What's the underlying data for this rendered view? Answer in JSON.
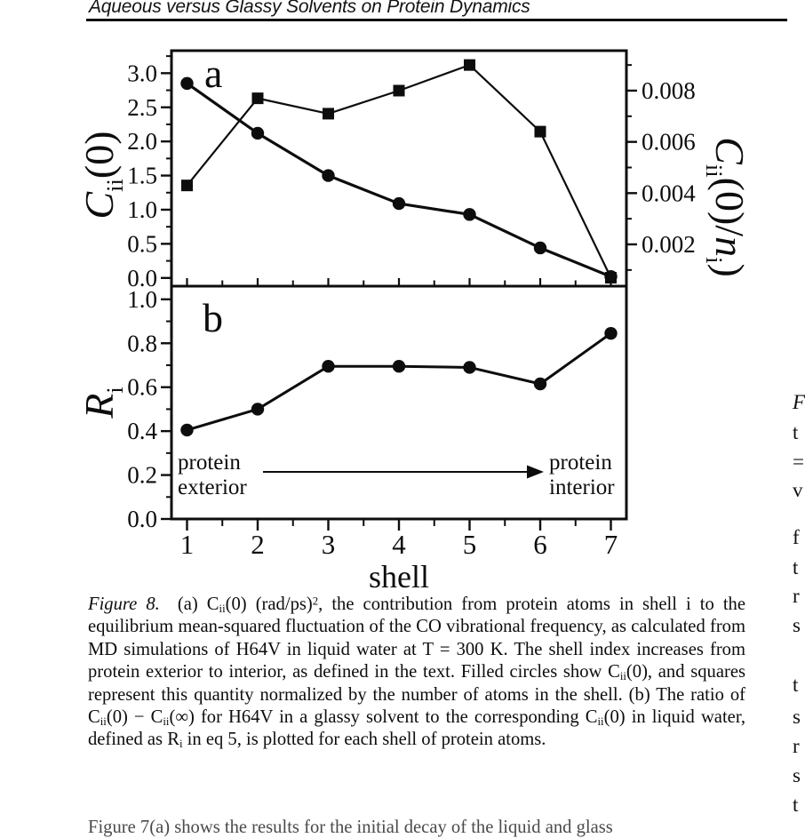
{
  "page": {
    "running_head": "Aqueous versus Glassy Solvents on Protein Dynamics",
    "right_edge_fragments": [
      {
        "y": 444,
        "ch": "F",
        "italic": true
      },
      {
        "y": 478,
        "ch": "t",
        "italic": false
      },
      {
        "y": 511,
        "ch": "=",
        "italic": false
      },
      {
        "y": 543,
        "ch": "v",
        "italic": false
      },
      {
        "y": 596,
        "ch": "f",
        "italic": false
      },
      {
        "y": 630,
        "ch": "t",
        "italic": false
      },
      {
        "y": 662,
        "ch": "r",
        "italic": false
      },
      {
        "y": 695,
        "ch": "s",
        "italic": false
      },
      {
        "y": 762,
        "ch": "t",
        "italic": false
      },
      {
        "y": 798,
        "ch": "s",
        "italic": false
      },
      {
        "y": 831,
        "ch": "r",
        "italic": false
      },
      {
        "y": 864,
        "ch": "s",
        "italic": false
      },
      {
        "y": 897,
        "ch": "t",
        "italic": false
      }
    ],
    "bottom_partial_line": "Figure 7(a) shows the results for the initial decay of the liquid and glass"
  },
  "figure": {
    "caption_lead": "Figure 8.",
    "caption_body": "(a) C~ii~(0) (rad/ps)^2^, the contribution from protein atoms in shell i to the equilibrium mean-squared fluctuation of the CO vibrational frequency, as calculated from MD simulations of H64V in liquid water at T = 300 K. The shell index increases from protein exterior to interior, as defined in the text. Filled circles show C~ii~(0), and squares represent this quantity normalized by the number of atoms in the shell. (b) The ratio of C~ii~(0) − C~ii~(∞) for H64V in a glassy solvent to the corresponding C~ii~(0) in liquid water, defined as R~i~ in eq 5, is plotted for each shell of protein atoms."
  },
  "chart_data": [
    {
      "type": "line",
      "panel_label": "a",
      "x": [
        1,
        2,
        3,
        4,
        5,
        6,
        7
      ],
      "xlim": [
        0.78,
        7.22
      ],
      "x_major_ticks": [
        1,
        2,
        3,
        4,
        5,
        6,
        7
      ],
      "x_minor_ticks": [
        1.5,
        2.5,
        3.5,
        4.5,
        5.5,
        6.5
      ],
      "grid": false,
      "left_axis": {
        "label_text": "Cii(0)",
        "label_tokens": [
          {
            "t": "C",
            "i": true
          },
          {
            "t": "ii",
            "sub": true
          },
          {
            "t": "(0)"
          }
        ],
        "lim": [
          -0.12,
          3.33
        ],
        "tick_values": [
          0.0,
          0.5,
          1.0,
          1.5,
          2.0,
          2.5,
          3.0
        ],
        "tick_labels": [
          "0.0",
          "0.5",
          "1.0",
          "1.5",
          "2.0",
          "2.5",
          "3.0"
        ],
        "minor_ticks": [
          0.25,
          0.75,
          1.25,
          1.75,
          2.25,
          2.75,
          3.25
        ]
      },
      "right_axis": {
        "label_text": "Cii(0)/ni)",
        "label_tokens": [
          {
            "t": "C",
            "i": true
          },
          {
            "t": "ii",
            "sub": true
          },
          {
            "t": "(0)/"
          },
          {
            "t": "n",
            "i": true
          },
          {
            "t": "i",
            "sub": true
          },
          {
            "t": ")"
          }
        ],
        "lim": [
          0.00037,
          0.00956
        ],
        "tick_values": [
          0.002,
          0.004,
          0.006,
          0.008
        ],
        "tick_labels": [
          "0.002",
          "0.004",
          "0.006",
          "0.008"
        ],
        "minor_ticks": [
          0.001,
          0.003,
          0.005,
          0.007,
          0.009
        ]
      },
      "series": [
        {
          "name": "Cii(0) filled circles",
          "axis": "left",
          "marker": "circle",
          "values": [
            2.85,
            2.12,
            1.5,
            1.09,
            0.93,
            0.44,
            0.02
          ]
        },
        {
          "name": "Cii(0)/ni filled squares",
          "axis": "right",
          "marker": "square",
          "values": [
            0.0043,
            0.0077,
            0.0071,
            0.008,
            0.009,
            0.0064,
            0.0007
          ]
        }
      ]
    },
    {
      "type": "line",
      "panel_label": "b",
      "x": [
        1,
        2,
        3,
        4,
        5,
        6,
        7
      ],
      "xlabel": "shell",
      "xlim": [
        0.78,
        7.22
      ],
      "x_major_ticks": [
        1,
        2,
        3,
        4,
        5,
        6,
        7
      ],
      "x_tick_labels": [
        "1",
        "2",
        "3",
        "4",
        "5",
        "6",
        "7"
      ],
      "x_minor_ticks": [
        1.5,
        2.5,
        3.5,
        4.5,
        5.5,
        6.5
      ],
      "grid": false,
      "left_axis": {
        "label_text": "Ri",
        "label_tokens": [
          {
            "t": "R",
            "i": true
          },
          {
            "t": "i",
            "sub": true
          }
        ],
        "lim": [
          0,
          1.06
        ],
        "tick_values": [
          0.0,
          0.2,
          0.4,
          0.6,
          0.8,
          1.0
        ],
        "tick_labels": [
          "0.0",
          "0.2",
          "0.4",
          "0.6",
          "0.8",
          "1.0"
        ],
        "minor_ticks": [
          0.1,
          0.3,
          0.5,
          0.7,
          0.9
        ]
      },
      "series": [
        {
          "name": "Ri filled circles",
          "axis": "left",
          "marker": "circle",
          "values": [
            0.405,
            0.5,
            0.695,
            0.695,
            0.69,
            0.615,
            0.845
          ]
        }
      ],
      "annotations": {
        "exterior_lines": [
          "protein",
          "exterior"
        ],
        "interior_lines": [
          "protein",
          "interior"
        ],
        "arrow": true
      }
    }
  ]
}
